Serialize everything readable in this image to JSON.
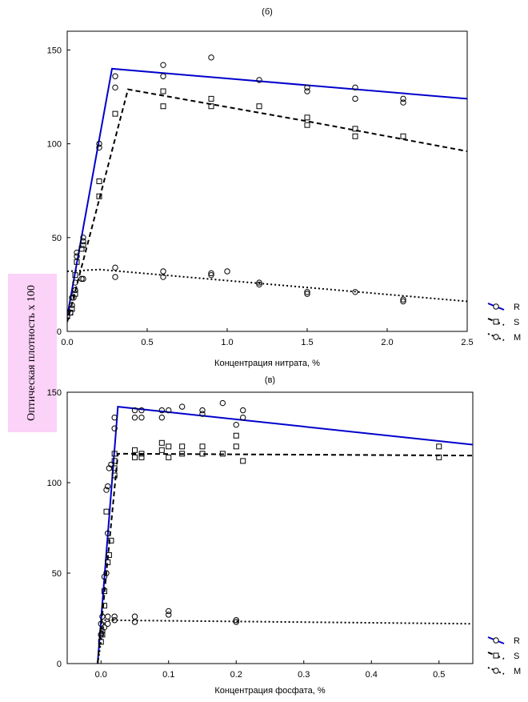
{
  "shared_ylabel": "Оптическая плотность х 100",
  "chart_data": [
    {
      "type": "scatter",
      "title": "(б)",
      "xlabel": "Концентрация нитрата, %",
      "ylabel": "Оптическая плотность х 100",
      "xlim": [
        0.0,
        2.5
      ],
      "ylim": [
        0,
        160
      ],
      "xticks": [
        "0.0",
        "0.5",
        "1.0",
        "1.5",
        "2.0",
        "2.5"
      ],
      "yticks": [
        "0",
        "50",
        "100",
        "150"
      ],
      "grid": false,
      "legend_position": "right",
      "series": [
        {
          "name": "R",
          "color": "#0000cc",
          "line_style": "solid",
          "marker": "circle",
          "points": [
            [
              0.0,
              8
            ],
            [
              0.02,
              10
            ],
            [
              0.03,
              14
            ],
            [
              0.04,
              18
            ],
            [
              0.05,
              22
            ],
            [
              0.06,
              40
            ],
            [
              0.06,
              42
            ],
            [
              0.09,
              28
            ],
            [
              0.1,
              48
            ],
            [
              0.1,
              50
            ],
            [
              0.2,
              98
            ],
            [
              0.2,
              100
            ],
            [
              0.3,
              130
            ],
            [
              0.3,
              136
            ],
            [
              0.6,
              136
            ],
            [
              0.6,
              142
            ],
            [
              0.9,
              146
            ],
            [
              1.2,
              134
            ],
            [
              1.5,
              128
            ],
            [
              1.5,
              130
            ],
            [
              1.8,
              124
            ],
            [
              1.8,
              130
            ],
            [
              2.1,
              122
            ],
            [
              2.1,
              124
            ]
          ],
          "fit_line": [
            [
              0.0,
              8
            ],
            [
              0.28,
              140
            ],
            [
              2.5,
              124
            ]
          ]
        },
        {
          "name": "S",
          "color": "#000000",
          "line_style": "dashed",
          "marker": "square",
          "points": [
            [
              0.0,
              8
            ],
            [
              0.02,
              10
            ],
            [
              0.03,
              12
            ],
            [
              0.05,
              20
            ],
            [
              0.05,
              30
            ],
            [
              0.06,
              37
            ],
            [
              0.09,
              44
            ],
            [
              0.1,
              46
            ],
            [
              0.2,
              72
            ],
            [
              0.2,
              80
            ],
            [
              0.3,
              116
            ],
            [
              0.6,
              120
            ],
            [
              0.6,
              128
            ],
            [
              0.9,
              120
            ],
            [
              0.9,
              124
            ],
            [
              1.2,
              120
            ],
            [
              1.5,
              110
            ],
            [
              1.5,
              114
            ],
            [
              1.8,
              104
            ],
            [
              1.8,
              108
            ],
            [
              2.1,
              104
            ]
          ],
          "fit_line": [
            [
              0.0,
              5
            ],
            [
              0.38,
              129
            ],
            [
              1.5,
              112
            ],
            [
              2.5,
              96
            ]
          ]
        },
        {
          "name": "M",
          "color": "#000000",
          "line_style": "dotted",
          "marker": "circle",
          "points": [
            [
              0.0,
              10
            ],
            [
              0.03,
              18
            ],
            [
              0.05,
              22
            ],
            [
              0.05,
              26
            ],
            [
              0.1,
              28
            ],
            [
              0.3,
              29
            ],
            [
              0.3,
              34
            ],
            [
              0.6,
              29
            ],
            [
              0.6,
              32
            ],
            [
              0.9,
              30
            ],
            [
              0.9,
              31
            ],
            [
              1.0,
              32
            ],
            [
              1.2,
              25
            ],
            [
              1.2,
              26
            ],
            [
              1.5,
              20
            ],
            [
              1.5,
              21
            ],
            [
              1.8,
              21
            ],
            [
              2.1,
              16
            ],
            [
              2.1,
              17
            ]
          ],
          "fit_line": [
            [
              0.0,
              32
            ],
            [
              0.2,
              33
            ],
            [
              2.5,
              16
            ]
          ]
        }
      ]
    },
    {
      "type": "scatter",
      "title": "(в)",
      "xlabel": "Концентрация фосфата, %",
      "ylabel": "Оптическая плотность х 100",
      "xlim": [
        -0.05,
        0.55
      ],
      "ylim": [
        0,
        150
      ],
      "xticks": [
        "0.0",
        "0.1",
        "0.2",
        "0.3",
        "0.4",
        "0.5"
      ],
      "yticks": [
        "0",
        "50",
        "100",
        "150"
      ],
      "grid": false,
      "legend_position": "right",
      "series": [
        {
          "name": "R",
          "color": "#0000cc",
          "line_style": "solid",
          "marker": "circle",
          "points": [
            [
              0.0,
              16
            ],
            [
              0.0,
              22
            ],
            [
              0.002,
              26
            ],
            [
              0.005,
              48
            ],
            [
              0.008,
              50
            ],
            [
              0.008,
              96
            ],
            [
              0.01,
              98
            ],
            [
              0.01,
              72
            ],
            [
              0.012,
              108
            ],
            [
              0.015,
              110
            ],
            [
              0.02,
              130
            ],
            [
              0.02,
              136
            ],
            [
              0.05,
              136
            ],
            [
              0.05,
              140
            ],
            [
              0.06,
              136
            ],
            [
              0.06,
              140
            ],
            [
              0.09,
              136
            ],
            [
              0.09,
              140
            ],
            [
              0.1,
              140
            ],
            [
              0.12,
              142
            ],
            [
              0.15,
              138
            ],
            [
              0.15,
              140
            ],
            [
              0.18,
              144
            ],
            [
              0.2,
              132
            ],
            [
              0.21,
              136
            ],
            [
              0.21,
              140
            ]
          ],
          "fit_line": [
            [
              -0.005,
              0
            ],
            [
              0.025,
              142
            ],
            [
              0.55,
              121
            ]
          ]
        },
        {
          "name": "S",
          "color": "#000000",
          "line_style": "dashed",
          "marker": "square",
          "points": [
            [
              0.0,
              12
            ],
            [
              0.002,
              16
            ],
            [
              0.005,
              32
            ],
            [
              0.005,
              40
            ],
            [
              0.008,
              84
            ],
            [
              0.01,
              56
            ],
            [
              0.012,
              60
            ],
            [
              0.015,
              68
            ],
            [
              0.02,
              104
            ],
            [
              0.02,
              108
            ],
            [
              0.02,
              112
            ],
            [
              0.02,
              116
            ],
            [
              0.05,
              114
            ],
            [
              0.05,
              118
            ],
            [
              0.06,
              114
            ],
            [
              0.06,
              116
            ],
            [
              0.09,
              118
            ],
            [
              0.09,
              122
            ],
            [
              0.1,
              114
            ],
            [
              0.1,
              120
            ],
            [
              0.12,
              116
            ],
            [
              0.12,
              120
            ],
            [
              0.15,
              116
            ],
            [
              0.15,
              120
            ],
            [
              0.18,
              116
            ],
            [
              0.2,
              120
            ],
            [
              0.2,
              126
            ],
            [
              0.21,
              112
            ],
            [
              0.5,
              114
            ],
            [
              0.5,
              120
            ]
          ],
          "fit_line": [
            [
              -0.005,
              0
            ],
            [
              0.025,
              116
            ],
            [
              0.55,
              115
            ]
          ]
        },
        {
          "name": "M",
          "color": "#000000",
          "line_style": "dotted",
          "marker": "circle",
          "points": [
            [
              0.0,
              16
            ],
            [
              0.002,
              18
            ],
            [
              0.005,
              20
            ],
            [
              0.01,
              22
            ],
            [
              0.01,
              26
            ],
            [
              0.02,
              24
            ],
            [
              0.02,
              26
            ],
            [
              0.05,
              23
            ],
            [
              0.05,
              26
            ],
            [
              0.1,
              27
            ],
            [
              0.1,
              29
            ],
            [
              0.2,
              23
            ],
            [
              0.2,
              24
            ]
          ],
          "fit_line": [
            [
              -0.005,
              0
            ],
            [
              0.005,
              24
            ],
            [
              0.55,
              22
            ]
          ]
        }
      ]
    }
  ]
}
